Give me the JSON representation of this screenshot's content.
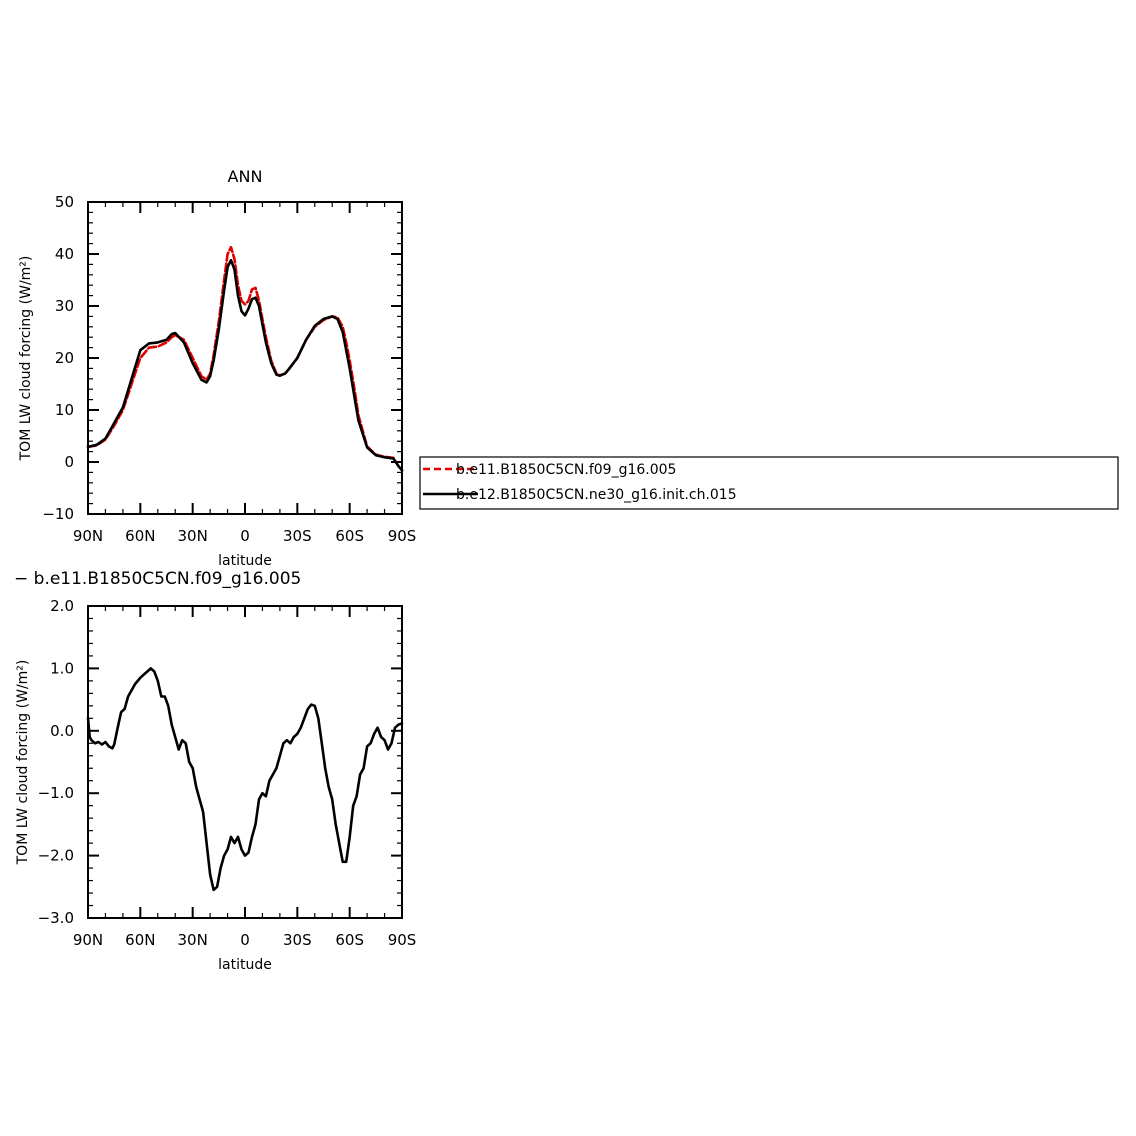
{
  "chart_data": [
    {
      "type": "line",
      "title": "ANN",
      "xlabel": "latitude",
      "ylabel": "TOM LW cloud forcing (W/m²)",
      "xlim": [
        90,
        -90
      ],
      "ylim": [
        -10,
        50
      ],
      "xticks": [
        {
          "value": 90,
          "label": "90N"
        },
        {
          "value": 60,
          "label": "60N"
        },
        {
          "value": 30,
          "label": "30N"
        },
        {
          "value": 0,
          "label": "0"
        },
        {
          "value": -30,
          "label": "30S"
        },
        {
          "value": -60,
          "label": "60S"
        },
        {
          "value": -90,
          "label": "90S"
        }
      ],
      "yticks": [
        {
          "value": 50,
          "label": "50"
        },
        {
          "value": 40,
          "label": "40"
        },
        {
          "value": 30,
          "label": "30"
        },
        {
          "value": 20,
          "label": "20"
        },
        {
          "value": 10,
          "label": "10"
        },
        {
          "value": 0,
          "label": "0"
        },
        {
          "value": -10,
          "label": "−10"
        }
      ],
      "legend_position": "right",
      "series": [
        {
          "name": "b.e11.B1850C5CN.f09_g16.005",
          "color": "#e00000",
          "dash": true,
          "x": [
            90,
            85,
            80,
            75,
            70,
            65,
            60,
            55,
            50,
            45,
            42,
            40,
            35,
            30,
            25,
            22,
            20,
            18,
            15,
            12,
            10,
            8,
            6,
            4,
            2,
            0,
            -2,
            -4,
            -6,
            -8,
            -10,
            -12,
            -15,
            -18,
            -20,
            -23,
            -25,
            -30,
            -35,
            -40,
            -45,
            -50,
            -53,
            -56,
            -58,
            -60,
            -63,
            -65,
            -70,
            -75,
            -80,
            -85,
            -88,
            -90
          ],
          "y": [
            2.9,
            3.2,
            4.3,
            7.0,
            10.0,
            15.0,
            20.0,
            22.0,
            22.2,
            23.0,
            24.0,
            24.4,
            23.5,
            20.0,
            16.5,
            15.8,
            17.0,
            20.5,
            27.0,
            35.0,
            40.0,
            41.3,
            39.0,
            34.0,
            31.0,
            30.3,
            31.0,
            33.2,
            33.5,
            31.0,
            27.5,
            24.0,
            19.5,
            17.0,
            16.7,
            17.0,
            17.8,
            20.0,
            23.5,
            26.0,
            27.3,
            28.0,
            27.8,
            26.0,
            23.0,
            19.5,
            13.5,
            9.0,
            3.0,
            1.4,
            1.0,
            0.8,
            -0.8,
            -1.6
          ]
        },
        {
          "name": "b.e12.B1850C5CN.ne30_g16.init.ch.015",
          "color": "#000000",
          "dash": false,
          "x": [
            90,
            85,
            80,
            75,
            70,
            65,
            60,
            55,
            50,
            45,
            42,
            40,
            35,
            30,
            25,
            22,
            20,
            18,
            15,
            12,
            10,
            8,
            6,
            4,
            2,
            0,
            -2,
            -4,
            -6,
            -8,
            -10,
            -12,
            -15,
            -18,
            -20,
            -23,
            -25,
            -30,
            -35,
            -40,
            -45,
            -50,
            -53,
            -56,
            -58,
            -60,
            -63,
            -65,
            -70,
            -75,
            -80,
            -85,
            -88,
            -90
          ],
          "y": [
            2.9,
            3.3,
            4.5,
            7.5,
            10.5,
            16.0,
            21.5,
            22.8,
            23.0,
            23.5,
            24.6,
            24.8,
            23.0,
            19.0,
            15.8,
            15.3,
            16.5,
            19.5,
            25.5,
            33.0,
            37.5,
            38.8,
            37.0,
            32.0,
            29.0,
            28.2,
            29.5,
            31.3,
            31.6,
            30.0,
            26.5,
            23.0,
            19.0,
            16.8,
            16.6,
            17.0,
            17.8,
            20.0,
            23.5,
            26.2,
            27.5,
            28.0,
            27.5,
            25.0,
            21.5,
            18.0,
            12.0,
            8.0,
            2.8,
            1.3,
            0.9,
            0.7,
            -0.8,
            -1.6
          ]
        }
      ]
    },
    {
      "type": "line",
      "title": "− b.e11.B1850C5CN.f09_g16.005",
      "xlabel": "latitude",
      "ylabel": "TOM LW cloud forcing (W/m²)",
      "xlim": [
        90,
        -90
      ],
      "ylim": [
        -3.0,
        2.0
      ],
      "xticks": [
        {
          "value": 90,
          "label": "90N"
        },
        {
          "value": 60,
          "label": "60N"
        },
        {
          "value": 30,
          "label": "30N"
        },
        {
          "value": 0,
          "label": "0"
        },
        {
          "value": -30,
          "label": "30S"
        },
        {
          "value": -60,
          "label": "60S"
        },
        {
          "value": -90,
          "label": "90S"
        }
      ],
      "yticks": [
        {
          "value": 2.0,
          "label": "2.0"
        },
        {
          "value": 1.0,
          "label": "1.0"
        },
        {
          "value": 0.0,
          "label": "0.0"
        },
        {
          "value": -1.0,
          "label": "−1.0"
        },
        {
          "value": -2.0,
          "label": "−2.0"
        },
        {
          "value": -3.0,
          "label": "−3.0"
        }
      ],
      "series": [
        {
          "color": "#000000",
          "dash": false,
          "x": [
            90,
            89,
            88,
            86,
            84,
            82,
            80,
            78,
            76,
            75,
            73,
            71,
            69,
            67,
            65,
            63,
            60,
            58,
            56,
            54,
            52,
            50,
            48,
            46,
            44,
            42,
            40,
            38,
            36,
            34,
            32,
            30,
            28,
            26,
            24,
            22,
            20,
            18,
            16,
            14,
            12,
            10,
            8,
            6,
            4,
            2,
            0,
            -2,
            -4,
            -6,
            -8,
            -10,
            -12,
            -14,
            -16,
            -18,
            -20,
            -22,
            -24,
            -26,
            -28,
            -30,
            -32,
            -34,
            -36,
            -38,
            -40,
            -42,
            -44,
            -46,
            -48,
            -50,
            -52,
            -54,
            -56,
            -58,
            -60,
            -62,
            -64,
            -66,
            -68,
            -70,
            -72,
            -74,
            -76,
            -78,
            -80,
            -82,
            -84,
            -86,
            -88,
            -90
          ],
          "y": [
            0.2,
            -0.1,
            -0.15,
            -0.2,
            -0.18,
            -0.22,
            -0.18,
            -0.25,
            -0.28,
            -0.22,
            0.05,
            0.3,
            0.35,
            0.55,
            0.65,
            0.75,
            0.85,
            0.9,
            0.95,
            1.0,
            0.95,
            0.8,
            0.55,
            0.55,
            0.4,
            0.1,
            -0.1,
            -0.3,
            -0.15,
            -0.2,
            -0.5,
            -0.6,
            -0.9,
            -1.1,
            -1.3,
            -1.8,
            -2.3,
            -2.55,
            -2.5,
            -2.2,
            -2.0,
            -1.9,
            -1.7,
            -1.8,
            -1.7,
            -1.9,
            -2.0,
            -1.95,
            -1.7,
            -1.5,
            -1.1,
            -1.0,
            -1.05,
            -0.8,
            -0.7,
            -0.6,
            -0.4,
            -0.2,
            -0.15,
            -0.2,
            -0.1,
            -0.05,
            0.05,
            0.2,
            0.35,
            0.42,
            0.4,
            0.2,
            -0.2,
            -0.6,
            -0.9,
            -1.1,
            -1.5,
            -1.8,
            -2.1,
            -2.1,
            -1.7,
            -1.2,
            -1.05,
            -0.7,
            -0.6,
            -0.25,
            -0.2,
            -0.05,
            0.05,
            -0.1,
            -0.15,
            -0.3,
            -0.2,
            0.05,
            0.1,
            0.12
          ]
        }
      ]
    }
  ]
}
